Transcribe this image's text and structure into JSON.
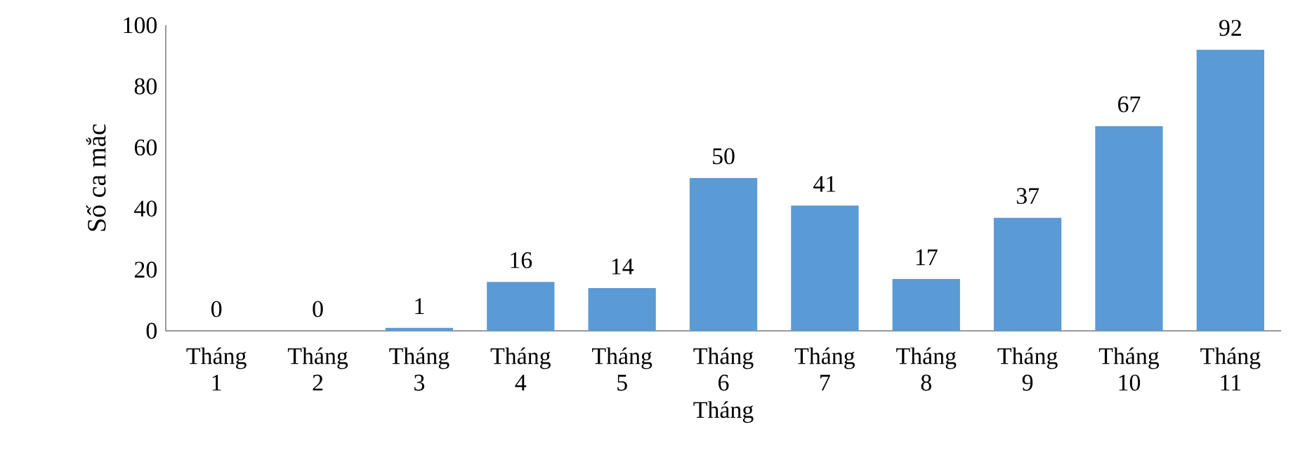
{
  "chart_data": {
    "type": "bar",
    "xlabel": "Tháng",
    "ylabel": "Số ca mắc",
    "categories": [
      "Tháng 1",
      "Tháng 2",
      "Tháng 3",
      "Tháng 4",
      "Tháng 5",
      "Tháng 6",
      "Tháng 7",
      "Tháng 8",
      "Tháng 9",
      "Tháng 10",
      "Tháng 11"
    ],
    "values": [
      0,
      0,
      1,
      16,
      14,
      50,
      41,
      17,
      37,
      67,
      92
    ],
    "color": "#5b9bd5",
    "ylim": [
      0,
      100
    ],
    "yticks": [
      0,
      20,
      40,
      60,
      80,
      100
    ],
    "data_labels": true,
    "grid": false
  }
}
